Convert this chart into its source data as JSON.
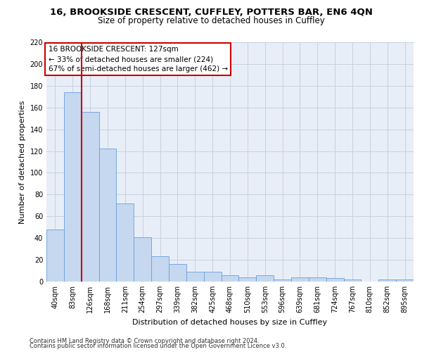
{
  "title1": "16, BROOKSIDE CRESCENT, CUFFLEY, POTTERS BAR, EN6 4QN",
  "title2": "Size of property relative to detached houses in Cuffley",
  "xlabel": "Distribution of detached houses by size in Cuffley",
  "ylabel": "Number of detached properties",
  "categories": [
    "40sqm",
    "83sqm",
    "126sqm",
    "168sqm",
    "211sqm",
    "254sqm",
    "297sqm",
    "339sqm",
    "382sqm",
    "425sqm",
    "468sqm",
    "510sqm",
    "553sqm",
    "596sqm",
    "639sqm",
    "681sqm",
    "724sqm",
    "767sqm",
    "810sqm",
    "852sqm",
    "895sqm"
  ],
  "values": [
    48,
    174,
    156,
    122,
    72,
    41,
    23,
    16,
    9,
    9,
    6,
    4,
    6,
    2,
    4,
    4,
    3,
    2,
    0,
    2,
    2
  ],
  "bar_color": "#c5d8f0",
  "bar_edge_color": "#6a9fd8",
  "background_color": "#e8eef8",
  "grid_color": "#c8d0e0",
  "vline_color": "#cc0000",
  "annotation_text": "16 BROOKSIDE CRESCENT: 127sqm\n← 33% of detached houses are smaller (224)\n67% of semi-detached houses are larger (462) →",
  "annotation_box_color": "#ffffff",
  "annotation_box_edge_color": "#cc0000",
  "ylim": [
    0,
    220
  ],
  "yticks": [
    0,
    20,
    40,
    60,
    80,
    100,
    120,
    140,
    160,
    180,
    200,
    220
  ],
  "footer1": "Contains HM Land Registry data © Crown copyright and database right 2024.",
  "footer2": "Contains public sector information licensed under the Open Government Licence v3.0.",
  "title1_fontsize": 9.5,
  "title2_fontsize": 8.5,
  "xlabel_fontsize": 8,
  "ylabel_fontsize": 8,
  "tick_fontsize": 7,
  "annotation_fontsize": 7.5,
  "footer_fontsize": 6
}
